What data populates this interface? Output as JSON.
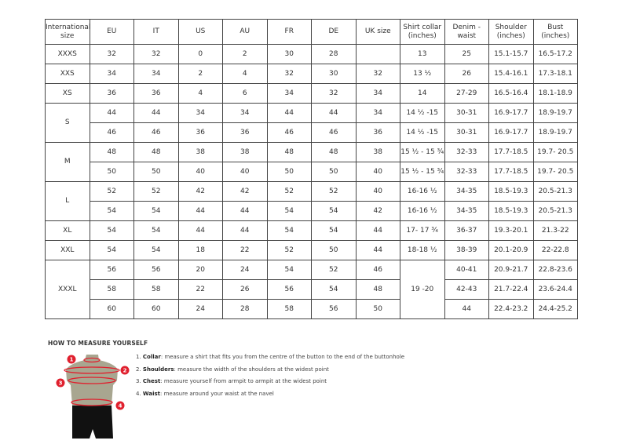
{
  "table": {
    "headers": [
      "International size",
      "EU",
      "IT",
      "US",
      "AU",
      "FR",
      "DE",
      "UK size",
      "Shirt collar (inches)",
      "Denim - waist",
      "Shoulder (inches)",
      "Bust (inches)"
    ],
    "groups": [
      {
        "size": "XXXS",
        "rows": [
          [
            "32",
            "32",
            "0",
            "2",
            "30",
            "28",
            "",
            "13",
            "25",
            "15.1-15.7",
            "16.5-17.2"
          ]
        ]
      },
      {
        "size": "XXS",
        "rows": [
          [
            "34",
            "34",
            "2",
            "4",
            "32",
            "30",
            "32",
            "13 ½",
            "26",
            "15.4-16.1",
            "17.3-18.1"
          ]
        ]
      },
      {
        "size": "XS",
        "rows": [
          [
            "36",
            "36",
            "4",
            "6",
            "34",
            "32",
            "34",
            "14",
            "27-29",
            "16.5-16.4",
            "18.1-18.9"
          ]
        ]
      },
      {
        "size": "S",
        "rows": [
          [
            "44",
            "44",
            "34",
            "34",
            "44",
            "44",
            "34",
            "14 ½ -15",
            "30-31",
            "16.9-17.7",
            "18.9-19.7"
          ],
          [
            "46",
            "46",
            "36",
            "36",
            "46",
            "46",
            "36",
            "14 ½ -15",
            "30-31",
            "16.9-17.7",
            "18.9-19.7"
          ]
        ]
      },
      {
        "size": "M",
        "rows": [
          [
            "48",
            "48",
            "38",
            "38",
            "48",
            "48",
            "38",
            "15 ½ - 15 ¾",
            "32-33",
            "17.7-18.5",
            "19.7- 20.5"
          ],
          [
            "50",
            "50",
            "40",
            "40",
            "50",
            "50",
            "40",
            "15 ½ - 15 ¾",
            "32-33",
            "17.7-18.5",
            "19.7- 20.5"
          ]
        ]
      },
      {
        "size": "L",
        "rows": [
          [
            "52",
            "52",
            "42",
            "42",
            "52",
            "52",
            "40",
            "16-16 ½",
            "34-35",
            "18.5-19.3",
            "20.5-21.3"
          ],
          [
            "54",
            "54",
            "44",
            "44",
            "54",
            "54",
            "42",
            "16-16 ½",
            "34-35",
            "18.5-19.3",
            "20.5-21.3"
          ]
        ]
      },
      {
        "size": "XL",
        "rows": [
          [
            "54",
            "54",
            "44",
            "44",
            "54",
            "54",
            "44",
            "17- 17 ¾",
            "36-37",
            "19.3-20.1",
            "21.3-22"
          ]
        ]
      },
      {
        "size": "XXL",
        "rows": [
          [
            "54",
            "54",
            "18",
            "22",
            "52",
            "50",
            "44",
            "18-18 ½",
            "38-39",
            "20.1-20.9",
            "22-22.8"
          ]
        ]
      },
      {
        "size": "XXXL",
        "rows": [
          [
            "56",
            "56",
            "20",
            "24",
            "54",
            "52",
            "46",
            "19 -20",
            "40-41",
            "20.9-21.7",
            "22.8-23.6"
          ],
          [
            "58",
            "58",
            "22",
            "26",
            "56",
            "54",
            "48",
            null,
            "42-43",
            "21.7-22.4",
            "23.6-24.4"
          ],
          [
            "60",
            "60",
            "24",
            "28",
            "58",
            "56",
            "50",
            null,
            "44",
            "22.4-23.2",
            "24.4-25.2"
          ]
        ]
      }
    ]
  },
  "measure": {
    "title": "HOW TO MEASURE YOURSELF",
    "steps": [
      {
        "num": "1.",
        "term": "Collar",
        "text": ": measure a shirt that fits you from the centre of the button to the end of the buttonhole"
      },
      {
        "num": "2.",
        "term": "Shoulders",
        "text": ": measure the width of the shoulders at the widest point"
      },
      {
        "num": "3.",
        "term": "Chest",
        "text": ": measure yourself from armpit to armpit at the widest point"
      },
      {
        "num": "4.",
        "term": "Waist",
        "text": ": measure around your waist at the navel"
      }
    ],
    "markers": [
      "1",
      "2",
      "3",
      "4"
    ],
    "colors": {
      "accent": "#e0202e",
      "torso": "#a8a690",
      "shorts": "#111111"
    }
  }
}
